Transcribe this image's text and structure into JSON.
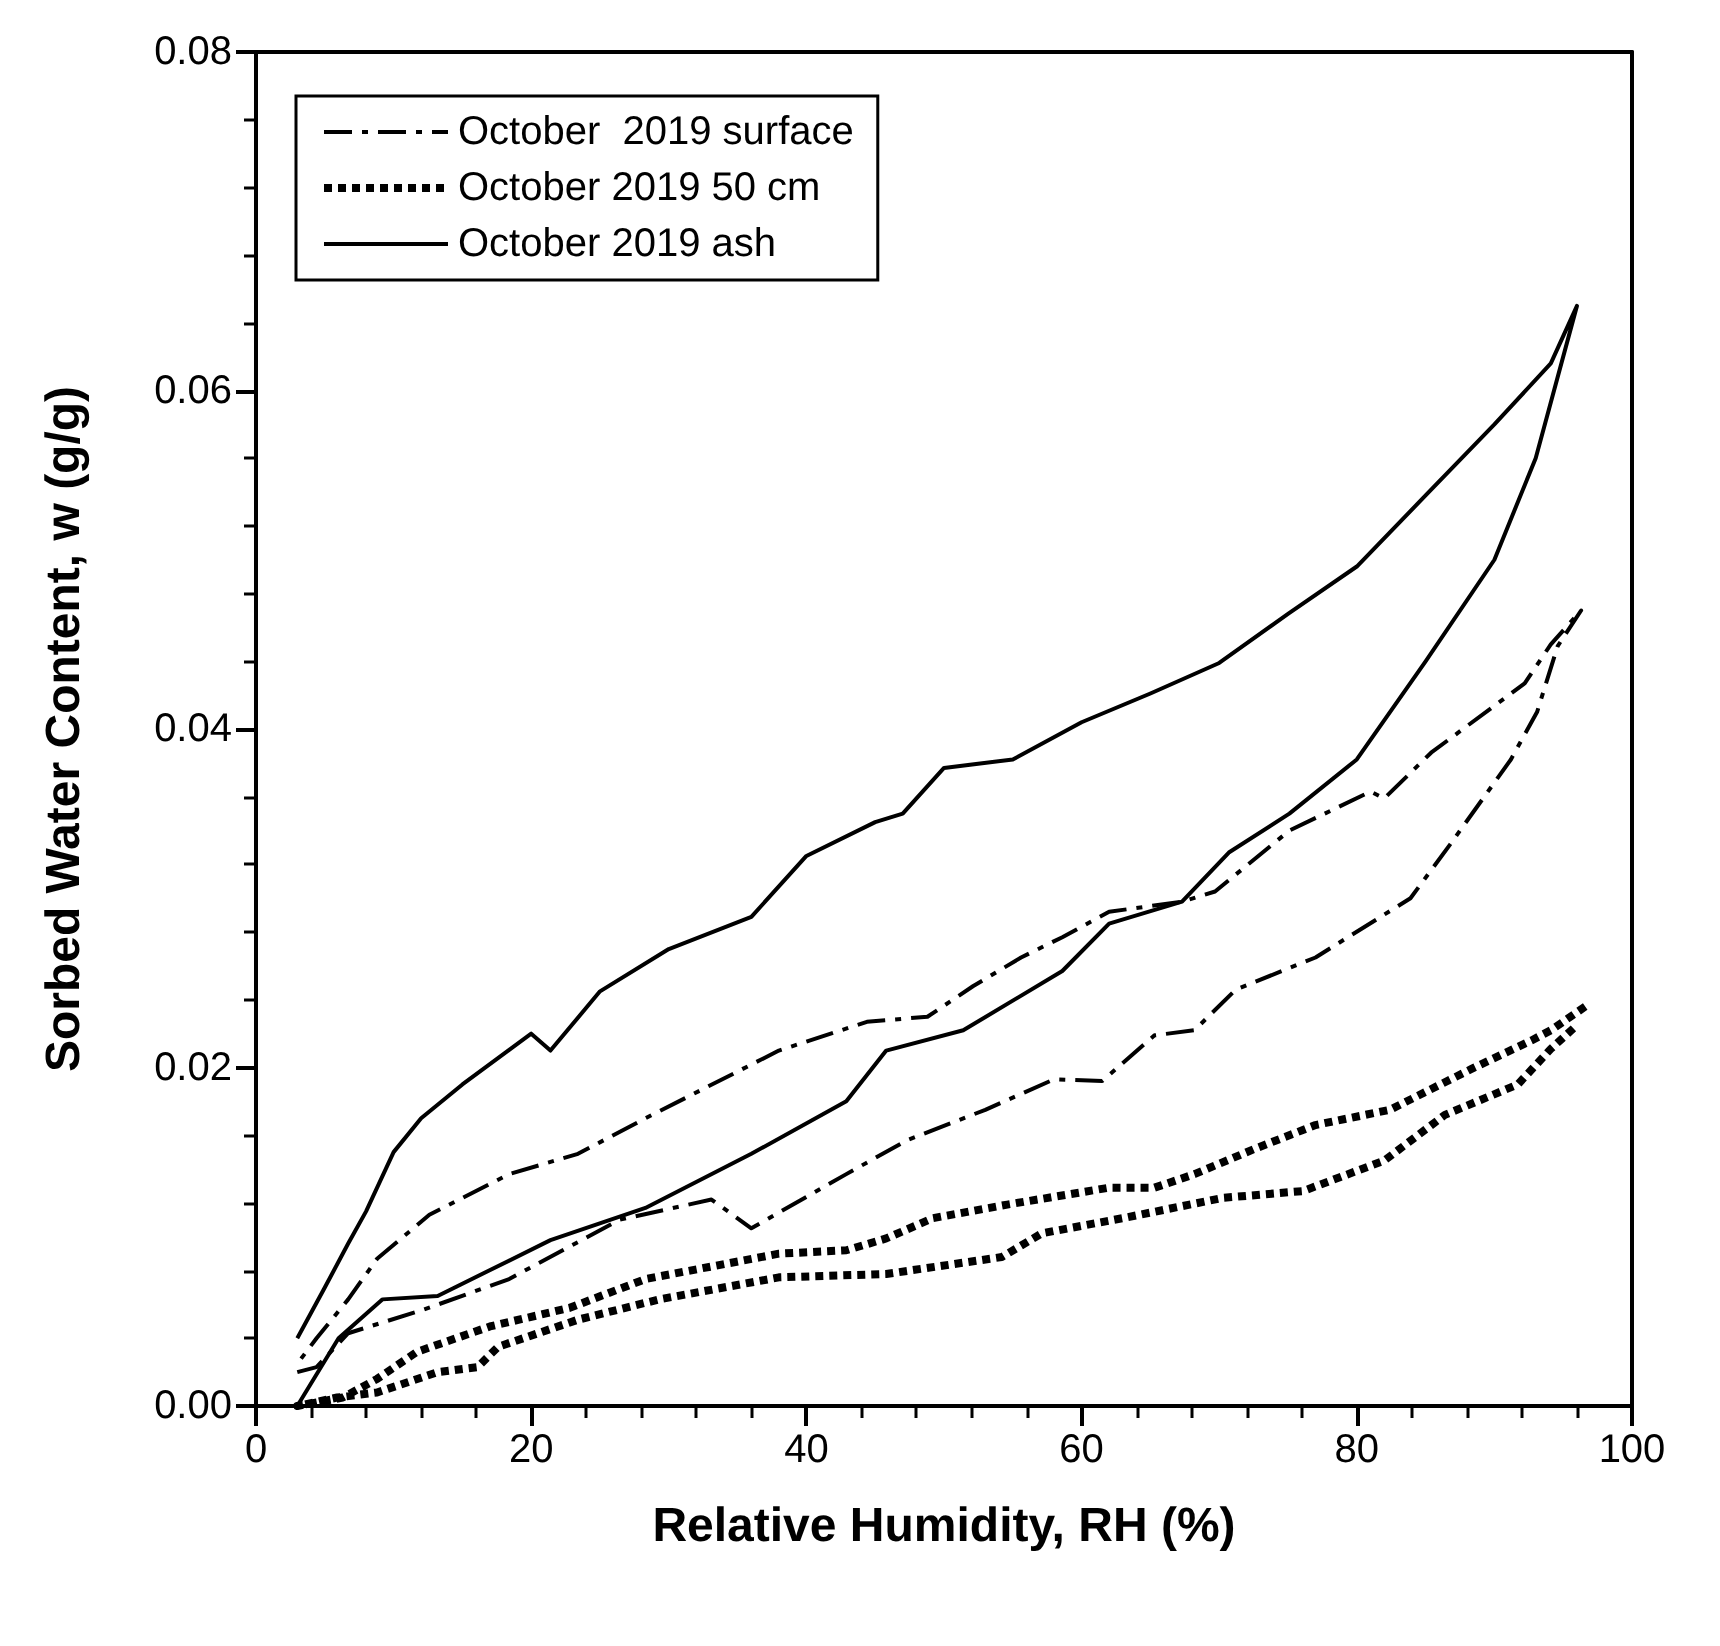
{
  "chart_data": {
    "type": "line",
    "xlabel": "Relative Humidity, RH (%)",
    "ylabel": "Sorbed Water Content, w (g/g)",
    "xlim": [
      0,
      100
    ],
    "xticks": [
      0,
      20,
      40,
      60,
      80,
      100
    ],
    "ylim": [
      0,
      0.08
    ],
    "yticks": [
      {
        "value": 0,
        "label": "0.00"
      },
      {
        "value": 0.02,
        "label": "0.02"
      },
      {
        "value": 0.04,
        "label": "0.04"
      },
      {
        "value": 0.06,
        "label": "0.06"
      },
      {
        "value": 0.08,
        "label": "0.08"
      }
    ],
    "grid": false,
    "legend": "top left",
    "series": [
      {
        "name": "October  2019 surface",
        "color": "#000000",
        "line_style": "dashed",
        "x": [
          3,
          4.4,
          6.7,
          12.2,
          18.4,
          26.4,
          33.1,
          36,
          42.9,
          47.3,
          53,
          58,
          61.5,
          65.3,
          68.2,
          71.2,
          77,
          83.9,
          86.8,
          91.2,
          93.1,
          94.6,
          96.3,
          94.1,
          92.2,
          85.4,
          82,
          81,
          75.1,
          69.7,
          67.3,
          62,
          58.6,
          55.6,
          52.1,
          48.8,
          44.4,
          38,
          28.3,
          23.4,
          18.4,
          12.6,
          8.8,
          6.7,
          4.4,
          3
        ],
        "values": [
          0.002,
          0.0023,
          0.0043,
          0.0057,
          0.0075,
          0.011,
          0.0122,
          0.0105,
          0.0137,
          0.0157,
          0.0175,
          0.0193,
          0.0192,
          0.0219,
          0.0222,
          0.0246,
          0.0265,
          0.03,
          0.0332,
          0.0382,
          0.041,
          0.0449,
          0.047,
          0.045,
          0.0427,
          0.0386,
          0.0359,
          0.0363,
          0.034,
          0.0304,
          0.0298,
          0.0292,
          0.0277,
          0.0265,
          0.0248,
          0.023,
          0.0227,
          0.021,
          0.017,
          0.0149,
          0.0137,
          0.0113,
          0.0087,
          0.0063,
          0.004,
          0.0025
        ]
      },
      {
        "name": "October 2019 50 cm",
        "color": "#000000",
        "line_style": "dotted",
        "x": [
          96.6,
          94.1,
          92.7,
          88.3,
          82.4,
          77,
          72.6,
          68.2,
          65.3,
          62,
          54.6,
          49.2,
          45.8,
          42.9,
          38,
          28.3,
          22.8,
          17,
          11.7,
          8.8,
          6.3,
          3,
          5.9,
          8.8,
          13.2,
          16.1,
          17.6,
          23.4,
          29.3,
          38,
          45.8,
          54.2,
          57.1,
          63,
          70.3,
          76.1,
          82,
          86.4,
          91.7,
          94.1,
          96
        ],
        "values": [
          0.0236,
          0.0222,
          0.0216,
          0.0199,
          0.0175,
          0.0166,
          0.0152,
          0.0137,
          0.0129,
          0.0129,
          0.0119,
          0.0111,
          0.0099,
          0.0092,
          0.009,
          0.0075,
          0.0058,
          0.0047,
          0.0032,
          0.0016,
          0.0005,
          0,
          0.0005,
          0.0008,
          0.002,
          0.0023,
          0.0035,
          0.0051,
          0.0063,
          0.0076,
          0.0078,
          0.0088,
          0.0102,
          0.0111,
          0.0123,
          0.0127,
          0.0145,
          0.0172,
          0.019,
          0.0211,
          0.0225
        ]
      },
      {
        "name": "October 2019 ash",
        "color": "#000000",
        "line_style": "solid",
        "x": [
          3,
          6,
          9.2,
          13.2,
          21.4,
          28.3,
          36,
          42.9,
          45.8,
          51.4,
          58.6,
          62,
          67.3,
          70.7,
          75.1,
          80,
          85,
          90,
          93,
          96,
          94.1,
          90,
          85,
          80,
          75,
          70,
          65,
          60,
          55,
          50,
          47,
          45,
          40,
          36,
          30,
          25,
          21.4,
          20,
          15,
          12,
          10,
          8,
          6.7,
          5,
          3
        ],
        "values": [
          0,
          0.004,
          0.0063,
          0.0065,
          0.0098,
          0.0117,
          0.0149,
          0.018,
          0.021,
          0.0222,
          0.0257,
          0.0285,
          0.0298,
          0.0327,
          0.035,
          0.0382,
          0.044,
          0.05,
          0.056,
          0.065,
          0.0616,
          0.058,
          0.0538,
          0.0496,
          0.0468,
          0.0439,
          0.0421,
          0.0404,
          0.0382,
          0.0377,
          0.035,
          0.0345,
          0.0325,
          0.0289,
          0.027,
          0.0245,
          0.021,
          0.022,
          0.019,
          0.017,
          0.015,
          0.0115,
          0.0096,
          0.007,
          0.004
        ]
      }
    ]
  }
}
